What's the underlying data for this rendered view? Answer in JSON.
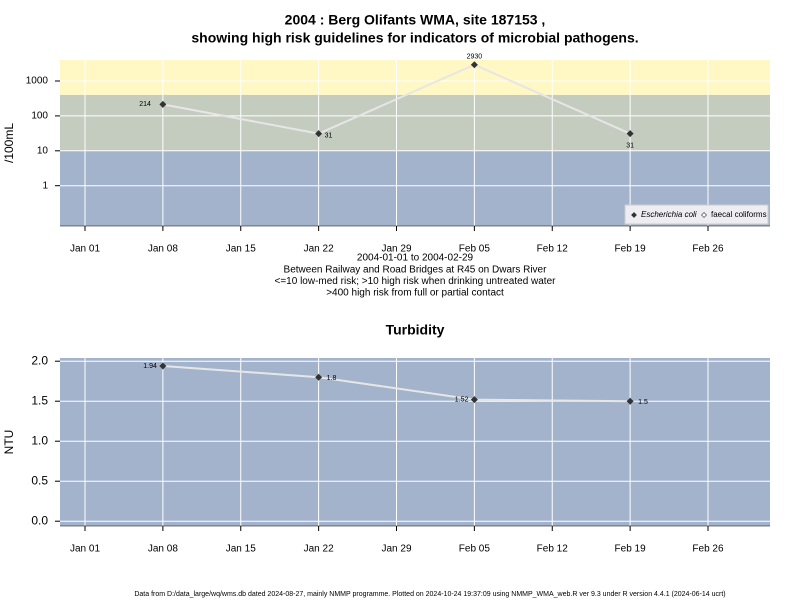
{
  "chart_data": [
    {
      "type": "line",
      "title": [
        "2004 : Berg Olifants WMA, site 187153 ,",
        "showing high risk guidelines for indicators of microbial pathogens."
      ],
      "ylabel": "/100mL",
      "log_scale": true,
      "ylim": [
        0.07,
        4000
      ],
      "yticks": [
        1,
        10,
        100,
        1000
      ],
      "xticks": [
        "Jan 01",
        "Jan 08",
        "Jan 15",
        "Jan 22",
        "Jan 29",
        "Feb 05",
        "Feb 12",
        "Feb 19",
        "Feb 26"
      ],
      "x": [
        "Jan 08",
        "Jan 22",
        "Feb 05",
        "Feb 19"
      ],
      "series": [
        {
          "name": "Escherichia coli",
          "color": "#333333",
          "values": [
            214,
            31,
            2930,
            31
          ]
        },
        {
          "name": "faecal coliforms",
          "color": "#333333",
          "values": [
            null,
            null,
            null,
            null
          ]
        }
      ],
      "bands": [
        {
          "from": 0.07,
          "to": 10,
          "color": "#a3b3cc"
        },
        {
          "from": 10,
          "to": 400,
          "color": "#c4cbbf"
        },
        {
          "from": 400,
          "to": 4000,
          "color": "#fff7c4"
        }
      ],
      "grid": true,
      "legend": "bottom-right",
      "notes": [
        "2004-01-01 to 2004-02-29",
        "Between Railway and Road Bridges at R45 on Dwars River",
        "<=10 low-med risk; >10 high risk when drinking untreated water",
        ">400 high risk from full or partial contact"
      ]
    },
    {
      "type": "line",
      "title": [
        "Turbidity"
      ],
      "ylabel": "NTU",
      "log_scale": false,
      "ylim": [
        -0.06,
        2.04
      ],
      "yticks": [
        {
          "value": 0,
          "label": "0.0"
        },
        {
          "value": 0.5,
          "label": "0.5"
        },
        {
          "value": 1,
          "label": "1.0"
        },
        {
          "value": 1.5,
          "label": "1.5"
        },
        {
          "value": 2,
          "label": "2.0"
        }
      ],
      "xticks": [
        "Jan 01",
        "Jan 08",
        "Jan 15",
        "Jan 22",
        "Jan 29",
        "Feb 05",
        "Feb 12",
        "Feb 19",
        "Feb 26"
      ],
      "x": [
        "Jan 08",
        "Jan 22",
        "Feb 05",
        "Feb 19"
      ],
      "series": [
        {
          "name": "Turbidity",
          "color": "#333333",
          "values": [
            1.94,
            1.8,
            1.52,
            1.5
          ]
        }
      ],
      "bands": [
        {
          "from": -0.06,
          "to": 2.04,
          "color": "#a3b3cc"
        }
      ],
      "grid": true
    }
  ],
  "footer": "Data from D:/data_large/wq/wms.db dated 2024-08-27, mainly NMMP programme. Plotted on 2024-10-24 19:37:09 using NMMP_WMA_web.R ver 9.3 under R version 4.4.1 (2024-06-14 ucrt)"
}
